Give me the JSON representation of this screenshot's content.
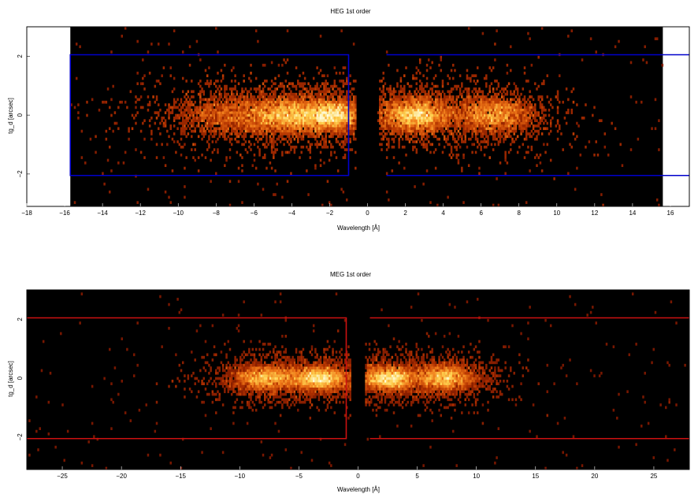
{
  "chart_data": [
    {
      "type": "heatmap",
      "title": "HEG 1st order",
      "xlabel": "Wavelength [Å]",
      "ylabel": "tg_d [arcsec]",
      "xlim": [
        -18,
        17
      ],
      "ylim": [
        -3.1,
        3.0
      ],
      "data_extent_x": [
        -15.7,
        15.6
      ],
      "x_ticks": [
        -18,
        -16,
        -14,
        -12,
        -10,
        -8,
        -6,
        -4,
        -2,
        0,
        2,
        4,
        6,
        8,
        10,
        12,
        14,
        16
      ],
      "y_ticks": [
        -2,
        0,
        2
      ],
      "colormap": [
        "#000000",
        "#5a0a00",
        "#b43200",
        "#f07818",
        "#ffd250",
        "#ffffe6"
      ],
      "region_color": "#0000cc",
      "regions": [
        {
          "x": [
            -15.7,
            -1.0
          ],
          "y": [
            -2.05,
            2.05
          ]
        },
        {
          "x": [
            1.0,
            17.0
          ],
          "y": [
            -2.05,
            2.05
          ]
        }
      ],
      "density_clusters": [
        {
          "x_center": -2.0,
          "x_spread": 0.9,
          "y_spread": 0.25,
          "peak": 1.0
        },
        {
          "x_center": -4.3,
          "x_spread": 1.0,
          "y_spread": 0.3,
          "peak": 0.75
        },
        {
          "x_center": -7.0,
          "x_spread": 1.6,
          "y_spread": 0.35,
          "peak": 0.55
        },
        {
          "x_center": 2.6,
          "x_spread": 0.9,
          "y_spread": 0.28,
          "peak": 0.95
        },
        {
          "x_center": 6.7,
          "x_spread": 1.1,
          "y_spread": 0.32,
          "peak": 0.7
        }
      ]
    },
    {
      "type": "heatmap",
      "title": "MEG 1st order",
      "xlabel": "Wavelength [Å]",
      "ylabel": "tg_d [arcsec]",
      "xlim": [
        -28,
        28
      ],
      "ylim": [
        -3.1,
        3.0
      ],
      "data_extent_x": [
        -28,
        28
      ],
      "x_ticks": [
        -25,
        -20,
        -15,
        -10,
        -5,
        0,
        5,
        10,
        15,
        20,
        25
      ],
      "y_ticks": [
        -2,
        0,
        2
      ],
      "colormap": [
        "#000000",
        "#5a0a00",
        "#b43200",
        "#f07818",
        "#ffd250",
        "#ffffe6"
      ],
      "region_color": "#cc1111",
      "regions": [
        {
          "x": [
            -28,
            -1.0
          ],
          "y": [
            -2.05,
            2.05
          ]
        },
        {
          "x": [
            1.0,
            28
          ],
          "y": [
            -2.05,
            2.05
          ]
        }
      ],
      "density_clusters": [
        {
          "x_center": -3.3,
          "x_spread": 1.2,
          "y_spread": 0.2,
          "peak": 1.0
        },
        {
          "x_center": -7.8,
          "x_spread": 1.4,
          "y_spread": 0.22,
          "peak": 0.85
        },
        {
          "x_center": 2.6,
          "x_spread": 1.1,
          "y_spread": 0.2,
          "peak": 0.95
        },
        {
          "x_center": 7.3,
          "x_spread": 1.3,
          "y_spread": 0.22,
          "peak": 0.85
        }
      ]
    }
  ]
}
